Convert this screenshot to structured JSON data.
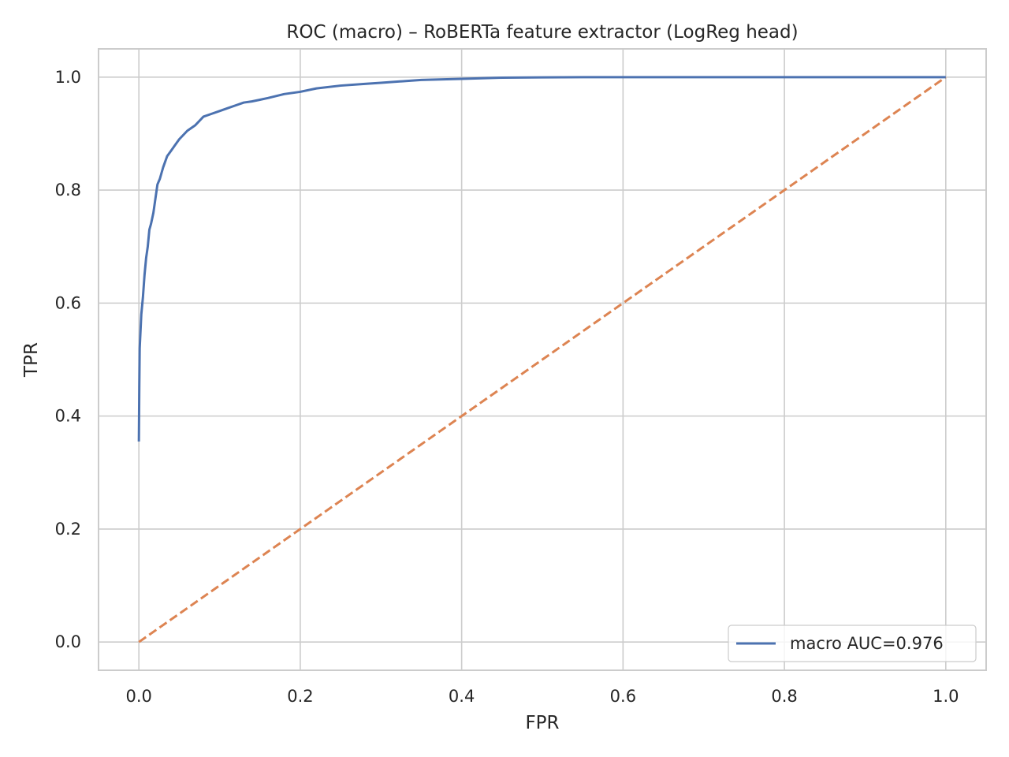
{
  "chart_data": {
    "type": "line",
    "title": "ROC (macro) – RoBERTa feature extractor (LogReg head)",
    "xlabel": "FPR",
    "ylabel": "TPR",
    "xlim": [
      -0.05,
      1.05
    ],
    "ylim": [
      -0.05,
      1.05
    ],
    "xticks": [
      0.0,
      0.2,
      0.4,
      0.6,
      0.8,
      1.0
    ],
    "xtick_labels": [
      "0.0",
      "0.2",
      "0.4",
      "0.6",
      "0.8",
      "1.0"
    ],
    "yticks": [
      0.0,
      0.2,
      0.4,
      0.6,
      0.8,
      1.0
    ],
    "ytick_labels": [
      "0.0",
      "0.2",
      "0.4",
      "0.6",
      "0.8",
      "1.0"
    ],
    "grid": true,
    "legend_position": "lower-right",
    "series": [
      {
        "name": "macro AUC=0.976",
        "color": "#4c72b0",
        "style": "solid",
        "x": [
          0.0,
          0.0005,
          0.001,
          0.002,
          0.003,
          0.005,
          0.007,
          0.009,
          0.011,
          0.013,
          0.015,
          0.018,
          0.02,
          0.023,
          0.026,
          0.028,
          0.03,
          0.035,
          0.04,
          0.045,
          0.05,
          0.06,
          0.07,
          0.08,
          0.09,
          0.1,
          0.11,
          0.12,
          0.13,
          0.14,
          0.15,
          0.16,
          0.18,
          0.2,
          0.22,
          0.25,
          0.28,
          0.3,
          0.35,
          0.4,
          0.45,
          0.5,
          0.55,
          0.6,
          0.7,
          0.8,
          0.9,
          1.0
        ],
        "y": [
          0.355,
          0.45,
          0.52,
          0.55,
          0.58,
          0.61,
          0.65,
          0.68,
          0.7,
          0.73,
          0.74,
          0.76,
          0.78,
          0.81,
          0.82,
          0.83,
          0.84,
          0.86,
          0.87,
          0.88,
          0.89,
          0.905,
          0.915,
          0.93,
          0.935,
          0.94,
          0.945,
          0.95,
          0.955,
          0.957,
          0.96,
          0.963,
          0.97,
          0.974,
          0.98,
          0.985,
          0.988,
          0.99,
          0.995,
          0.997,
          0.999,
          0.9995,
          1.0,
          1.0,
          1.0,
          1.0,
          1.0,
          1.0
        ]
      },
      {
        "name": "",
        "color": "#dd8452",
        "style": "dashed",
        "x": [
          0.0,
          1.0
        ],
        "y": [
          0.0,
          1.0
        ]
      }
    ]
  }
}
